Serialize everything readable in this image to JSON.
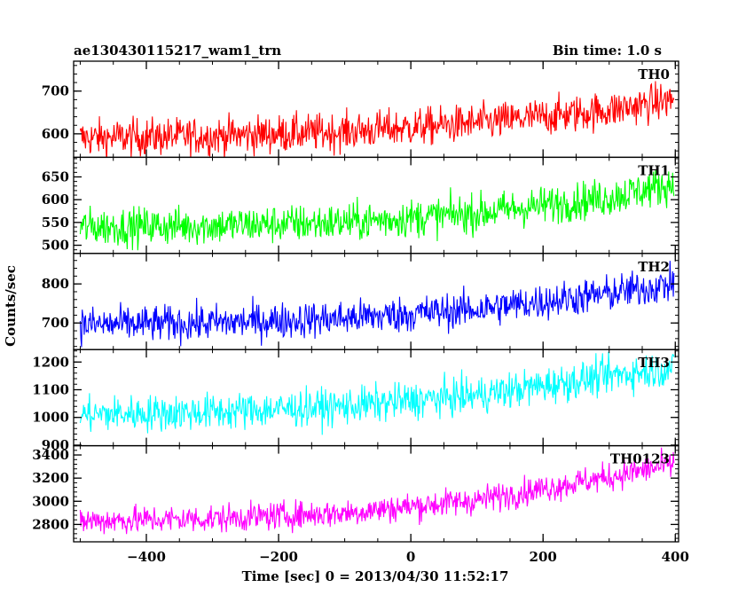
{
  "header": {
    "title": "ae130430115217_wam1_trn",
    "bin_time": "Bin time: 1.0 s"
  },
  "chart_data": {
    "type": "line",
    "ylabel": "Counts/sec",
    "xlabel": "Time [sec] 0 = 2013/04/30 11:52:17",
    "xlim": [
      -510,
      405
    ],
    "x_ticks": [
      -400,
      -200,
      0,
      200,
      400
    ],
    "x_tick_labels": [
      "−400",
      "−200",
      "0",
      "200",
      "400"
    ],
    "x_range_data": [
      -500,
      398
    ],
    "panels": [
      {
        "name": "TH0",
        "color": "#ff0000",
        "ylim": [
          545,
          770
        ],
        "yticks": [
          600,
          700
        ],
        "ytick_labels": [
          "600",
          "700"
        ],
        "trend": [
          [
            -500,
            590
          ],
          [
            -300,
            595
          ],
          [
            -100,
            605
          ],
          [
            100,
            625
          ],
          [
            300,
            655
          ],
          [
            398,
            680
          ]
        ],
        "noise": 40
      },
      {
        "name": "TH1",
        "color": "#00ff00",
        "ylim": [
          482,
          693
        ],
        "yticks": [
          500,
          550,
          600,
          650
        ],
        "ytick_labels": [
          "500",
          "550",
          "600",
          "650"
        ],
        "trend": [
          [
            -500,
            540
          ],
          [
            -300,
            543
          ],
          [
            -100,
            550
          ],
          [
            100,
            570
          ],
          [
            300,
            605
          ],
          [
            398,
            635
          ]
        ],
        "noise": 38
      },
      {
        "name": "TH2",
        "color": "#0000ff",
        "ylim": [
          632,
          878
        ],
        "yticks": [
          700,
          800
        ],
        "ytick_labels": [
          "700",
          "800"
        ],
        "trend": [
          [
            -500,
            695
          ],
          [
            -300,
            700
          ],
          [
            -100,
            712
          ],
          [
            100,
            735
          ],
          [
            300,
            775
          ],
          [
            398,
            800
          ]
        ],
        "noise": 42
      },
      {
        "name": "TH3",
        "color": "#00ffff",
        "ylim": [
          898,
          1245
        ],
        "yticks": [
          900,
          1000,
          1100,
          1200
        ],
        "ytick_labels": [
          "900",
          "1000",
          "1100",
          "1200"
        ],
        "trend": [
          [
            -500,
            1010
          ],
          [
            -300,
            1020
          ],
          [
            -100,
            1040
          ],
          [
            100,
            1080
          ],
          [
            300,
            1150
          ],
          [
            398,
            1180
          ]
        ],
        "noise": 60
      },
      {
        "name": "TH0123",
        "color": "#ff00ff",
        "ylim": [
          2650,
          3480
        ],
        "yticks": [
          2800,
          3000,
          3200,
          3400
        ],
        "ytick_labels": [
          "2800",
          "3000",
          "3200",
          "3400"
        ],
        "trend": [
          [
            -500,
            2830
          ],
          [
            -300,
            2850
          ],
          [
            -100,
            2900
          ],
          [
            100,
            3010
          ],
          [
            300,
            3210
          ],
          [
            398,
            3320
          ]
        ],
        "noise": 110
      }
    ]
  }
}
